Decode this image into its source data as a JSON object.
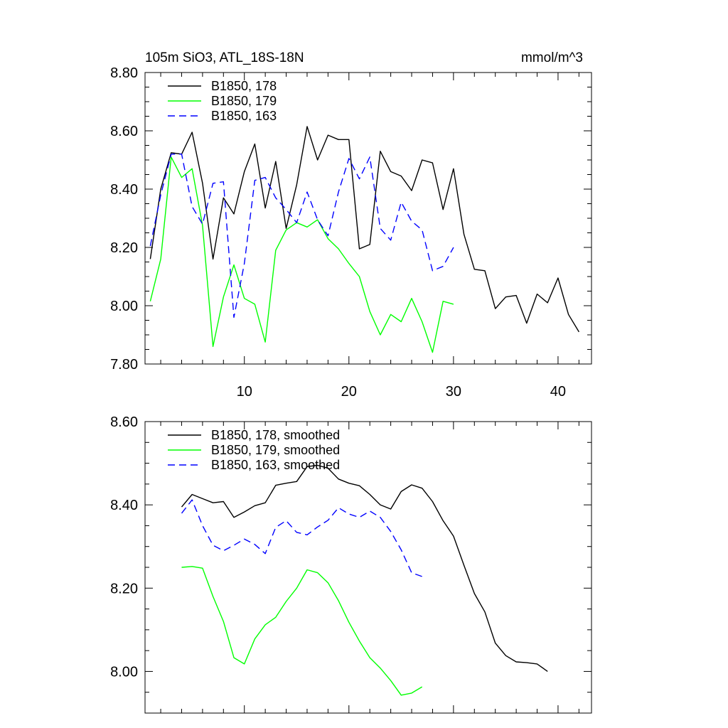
{
  "figure": {
    "title_left": "105m SiO3, ATL_18S-18N",
    "title_right": "mmol/m^3"
  },
  "colors": {
    "series_178": "#000000",
    "series_179": "#00ff00",
    "series_163": "#0000ff",
    "axis": "#000000",
    "background": "#ffffff"
  },
  "chart_data": [
    {
      "type": "line",
      "title": "105m SiO3, ATL_18S-18N",
      "units": "mmol/m^3",
      "xlabel": "",
      "ylabel": "",
      "xlim": [
        0.5,
        43.2
      ],
      "ylim": [
        7.8,
        8.8
      ],
      "x_ticks": [
        10,
        20,
        30,
        40
      ],
      "x_tick_labels": [
        "10",
        "20",
        "30",
        "40"
      ],
      "y_ticks": [
        7.8,
        8.0,
        8.2,
        8.4,
        8.6,
        8.8
      ],
      "y_tick_labels": [
        "7.80",
        "8.00",
        "8.20",
        "8.40",
        "8.60",
        "8.80"
      ],
      "legend_position": "top-left",
      "grid": false,
      "series": [
        {
          "name": "B1850, 178",
          "color": "#000000",
          "dash": "solid",
          "x": [
            1,
            2,
            3,
            4,
            5,
            6,
            7,
            8,
            9,
            10,
            11,
            12,
            13,
            14,
            15,
            16,
            17,
            18,
            19,
            20,
            21,
            22,
            23,
            24,
            25,
            26,
            27,
            28,
            29,
            30,
            31,
            32,
            33,
            34,
            35,
            36,
            37,
            38,
            39,
            40,
            41,
            42
          ],
          "values": [
            8.16,
            8.4,
            8.525,
            8.52,
            8.595,
            8.42,
            8.16,
            8.37,
            8.315,
            8.46,
            8.555,
            8.335,
            8.495,
            8.265,
            8.415,
            8.615,
            8.5,
            8.585,
            8.57,
            8.57,
            8.195,
            8.21,
            8.53,
            8.46,
            8.445,
            8.395,
            8.5,
            8.49,
            8.33,
            8.47,
            8.245,
            8.125,
            8.12,
            7.99,
            8.03,
            8.035,
            7.94,
            8.04,
            8.01,
            8.095,
            7.97,
            7.91
          ]
        },
        {
          "name": "B1850, 179",
          "color": "#00ff00",
          "dash": "solid",
          "x": [
            1,
            2,
            3,
            4,
            5,
            6,
            7,
            8,
            9,
            10,
            11,
            12,
            13,
            14,
            15,
            16,
            17,
            18,
            19,
            20,
            21,
            22,
            23,
            24,
            25,
            26,
            27,
            28,
            29,
            30
          ],
          "values": [
            8.015,
            8.16,
            8.51,
            8.44,
            8.47,
            8.275,
            7.86,
            8.03,
            8.14,
            8.025,
            8.005,
            7.875,
            8.19,
            8.26,
            8.285,
            8.27,
            8.295,
            8.23,
            8.195,
            8.145,
            8.1,
            7.98,
            7.9,
            7.97,
            7.945,
            8.025,
            7.945,
            7.84,
            8.015,
            8.005
          ]
        },
        {
          "name": "B1850, 163",
          "color": "#0000ff",
          "dash": "dashed",
          "x": [
            1,
            2,
            3,
            4,
            5,
            6,
            7,
            8,
            9,
            10,
            11,
            12,
            13,
            14,
            15,
            16,
            17,
            18,
            19,
            20,
            21,
            22,
            23,
            24,
            25,
            26,
            27,
            28,
            29,
            30
          ],
          "values": [
            8.205,
            8.38,
            8.52,
            8.52,
            8.34,
            8.28,
            8.42,
            8.425,
            7.96,
            8.145,
            8.43,
            8.44,
            8.37,
            8.33,
            8.285,
            8.39,
            8.295,
            8.24,
            8.39,
            8.505,
            8.435,
            8.51,
            8.265,
            8.225,
            8.355,
            8.29,
            8.26,
            8.12,
            8.135,
            8.2
          ]
        }
      ]
    },
    {
      "type": "line",
      "title": "",
      "xlabel": "",
      "ylabel": "",
      "xlim": [
        0.5,
        43.2
      ],
      "ylim": [
        7.9,
        8.6
      ],
      "x_ticks": [
        10,
        20,
        30,
        40
      ],
      "x_tick_labels": [],
      "y_ticks": [
        8.0,
        8.2,
        8.4,
        8.6
      ],
      "y_tick_labels": [
        "8.00",
        "8.20",
        "8.40",
        "8.60"
      ],
      "legend_position": "top-left",
      "grid": false,
      "series": [
        {
          "name": "B1850, 178, smoothed",
          "color": "#000000",
          "dash": "solid",
          "x": [
            4,
            5,
            6,
            7,
            8,
            9,
            10,
            11,
            12,
            13,
            14,
            15,
            16,
            17,
            18,
            19,
            20,
            21,
            22,
            23,
            24,
            25,
            26,
            27,
            28,
            29,
            30,
            31,
            32,
            33,
            34,
            35,
            36,
            37,
            38,
            39
          ],
          "values": [
            8.395,
            8.425,
            8.415,
            8.405,
            8.408,
            8.37,
            8.383,
            8.398,
            8.405,
            8.447,
            8.452,
            8.456,
            8.492,
            8.495,
            8.488,
            8.462,
            8.452,
            8.446,
            8.425,
            8.4,
            8.39,
            8.432,
            8.448,
            8.44,
            8.408,
            8.362,
            8.325,
            8.255,
            8.187,
            8.143,
            8.068,
            8.038,
            8.023,
            8.021,
            8.018,
            8.0
          ]
        },
        {
          "name": "B1850, 179, smoothed",
          "color": "#00ff00",
          "dash": "solid",
          "x": [
            4,
            5,
            6,
            7,
            8,
            9,
            10,
            11,
            12,
            13,
            14,
            15,
            16,
            17,
            18,
            19,
            20,
            21,
            22,
            23,
            24,
            25,
            26,
            27
          ],
          "values": [
            8.25,
            8.252,
            8.248,
            8.18,
            8.12,
            8.033,
            8.018,
            8.078,
            8.112,
            8.13,
            8.168,
            8.2,
            8.244,
            8.237,
            8.213,
            8.17,
            8.118,
            8.073,
            8.033,
            8.008,
            7.978,
            7.943,
            7.948,
            7.963
          ]
        },
        {
          "name": "B1850, 163, smoothed",
          "color": "#0000ff",
          "dash": "dashed",
          "x": [
            4,
            5,
            6,
            7,
            8,
            9,
            10,
            11,
            12,
            13,
            14,
            15,
            16,
            17,
            18,
            19,
            20,
            21,
            22,
            23,
            24,
            25,
            26,
            27
          ],
          "values": [
            8.38,
            8.412,
            8.35,
            8.303,
            8.29,
            8.303,
            8.318,
            8.305,
            8.283,
            8.346,
            8.362,
            8.334,
            8.328,
            8.347,
            8.363,
            8.393,
            8.378,
            8.37,
            8.385,
            8.37,
            8.336,
            8.292,
            8.237,
            8.228
          ]
        }
      ]
    }
  ]
}
